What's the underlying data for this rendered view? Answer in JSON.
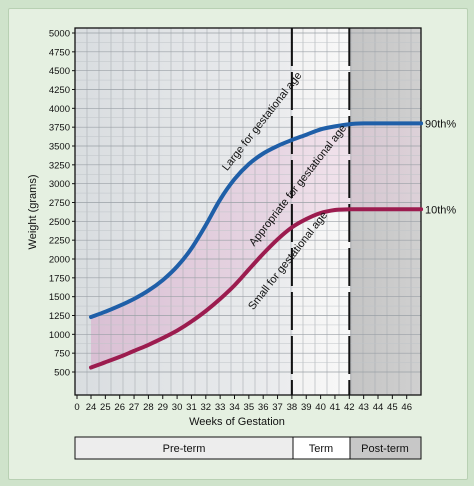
{
  "chart_data": {
    "type": "line",
    "xlabel": "Weeks of Gestation",
    "ylabel": "Weight (grams)",
    "xlim": [
      0,
      48
    ],
    "ylim": [
      0,
      5000
    ],
    "x_ticks": [
      0,
      24,
      25,
      26,
      27,
      28,
      29,
      30,
      31,
      32,
      33,
      34,
      35,
      36,
      37,
      38,
      39,
      40,
      41,
      42,
      43,
      44,
      45,
      46
    ],
    "y_ticks": [
      500,
      750,
      1000,
      1250,
      1500,
      1750,
      2000,
      2250,
      2500,
      2750,
      3000,
      3250,
      3500,
      3750,
      4000,
      4250,
      4500,
      4750,
      5000
    ],
    "grid": true,
    "series": [
      {
        "name": "90th%",
        "color": "#1f5fa8",
        "x": [
          24,
          25,
          26,
          27,
          28,
          29,
          30,
          31,
          32,
          33,
          34,
          35,
          36,
          37,
          38,
          39,
          40,
          41,
          42,
          43,
          44,
          45,
          46,
          47
        ],
        "y": [
          1230,
          1300,
          1380,
          1470,
          1580,
          1720,
          1900,
          2140,
          2450,
          2790,
          3060,
          3260,
          3400,
          3500,
          3580,
          3650,
          3720,
          3760,
          3790,
          3800,
          3800,
          3800,
          3800,
          3800
        ]
      },
      {
        "name": "10th%",
        "color": "#9c1c4f",
        "x": [
          24,
          25,
          26,
          27,
          28,
          29,
          30,
          31,
          32,
          33,
          34,
          35,
          36,
          37,
          38,
          39,
          40,
          41,
          42,
          43,
          44,
          45,
          46,
          47
        ],
        "y": [
          560,
          630,
          700,
          780,
          860,
          950,
          1050,
          1170,
          1310,
          1470,
          1650,
          1860,
          2070,
          2260,
          2420,
          2530,
          2610,
          2650,
          2660,
          2660,
          2660,
          2660,
          2660,
          2660
        ]
      }
    ],
    "zone_boundaries": [
      38,
      42
    ],
    "region_labels": [
      {
        "text": "Large for gestational age",
        "x": 36.1,
        "y": 3800
      },
      {
        "text": "Appropriate for gestational age",
        "x": 38.6,
        "y": 2950
      },
      {
        "text": "Small for gestational age",
        "x": 37.9,
        "y": 1950
      }
    ],
    "zones": [
      "Pre-term",
      "Term",
      "Post-term"
    ]
  }
}
